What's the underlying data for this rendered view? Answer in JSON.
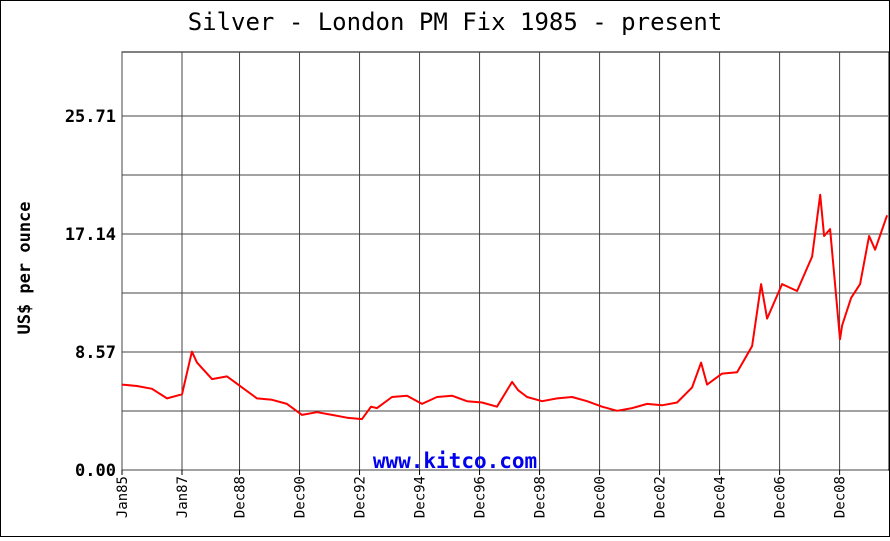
{
  "chart_data": {
    "type": "line",
    "title": "Silver - London PM Fix 1985 - present",
    "y_label": "US$ per ounce",
    "annotation": "www.kitco.com",
    "grid": true,
    "x": [
      1985.0,
      1985.5,
      1986.0,
      1986.5,
      1987.0,
      1987.33,
      1987.5,
      1988.0,
      1988.5,
      1989.0,
      1989.5,
      1990.0,
      1990.5,
      1991.0,
      1991.5,
      1992.0,
      1992.5,
      1993.0,
      1993.3,
      1993.5,
      1994.0,
      1994.5,
      1995.0,
      1995.5,
      1996.0,
      1996.5,
      1997.0,
      1997.5,
      1998.0,
      1998.2,
      1998.5,
      1999.0,
      1999.5,
      2000.0,
      2000.5,
      2001.0,
      2001.5,
      2002.0,
      2002.5,
      2003.0,
      2003.5,
      2004.0,
      2004.3,
      2004.5,
      2005.0,
      2005.5,
      2006.0,
      2006.3,
      2006.5,
      2007.0,
      2007.5,
      2008.0,
      2008.27,
      2008.4,
      2008.6,
      2008.93,
      2009.0,
      2009.3,
      2009.6,
      2009.9,
      2010.1,
      2010.5
    ],
    "series": [
      {
        "name": "Silver",
        "color": "#ff0000",
        "values": [
          6.2,
          6.1,
          5.9,
          5.2,
          5.5,
          8.6,
          7.8,
          6.6,
          6.8,
          6.0,
          5.2,
          5.1,
          4.8,
          4.0,
          4.2,
          4.0,
          3.8,
          3.7,
          4.6,
          4.5,
          5.3,
          5.4,
          4.8,
          5.3,
          5.4,
          5.0,
          4.9,
          4.6,
          6.4,
          5.8,
          5.3,
          5.0,
          5.2,
          5.3,
          5.0,
          4.6,
          4.3,
          4.5,
          4.8,
          4.7,
          4.9,
          6.0,
          7.8,
          6.2,
          7.0,
          7.1,
          9.0,
          13.5,
          11.0,
          13.5,
          13.0,
          15.5,
          20.0,
          17.0,
          17.5,
          9.5,
          10.5,
          12.5,
          13.5,
          17.0,
          16.0,
          18.5
        ]
      }
    ],
    "xlim": [
      1985.0,
      2010.53
    ],
    "xticks": [
      {
        "value": 1985.0,
        "label": "Jan85"
      },
      {
        "value": 1987.0,
        "label": "Jan87"
      },
      {
        "value": 1988.917,
        "label": "Dec88"
      },
      {
        "value": 1990.917,
        "label": "Dec90"
      },
      {
        "value": 1992.917,
        "label": "Dec92"
      },
      {
        "value": 1994.917,
        "label": "Dec94"
      },
      {
        "value": 1996.917,
        "label": "Dec96"
      },
      {
        "value": 1998.917,
        "label": "Dec98"
      },
      {
        "value": 2000.917,
        "label": "Dec00"
      },
      {
        "value": 2002.917,
        "label": "Dec02"
      },
      {
        "value": 2004.917,
        "label": "Dec04"
      },
      {
        "value": 2006.917,
        "label": "Dec06"
      },
      {
        "value": 2008.917,
        "label": "Dec08"
      }
    ],
    "ylim": [
      0,
      30
    ],
    "yticks": [
      {
        "value": 0,
        "label": "0.00"
      },
      8.57,
      17.14,
      25.71
    ],
    "minor_yticks": [
      4.29,
      12.86,
      21.43
    ]
  }
}
